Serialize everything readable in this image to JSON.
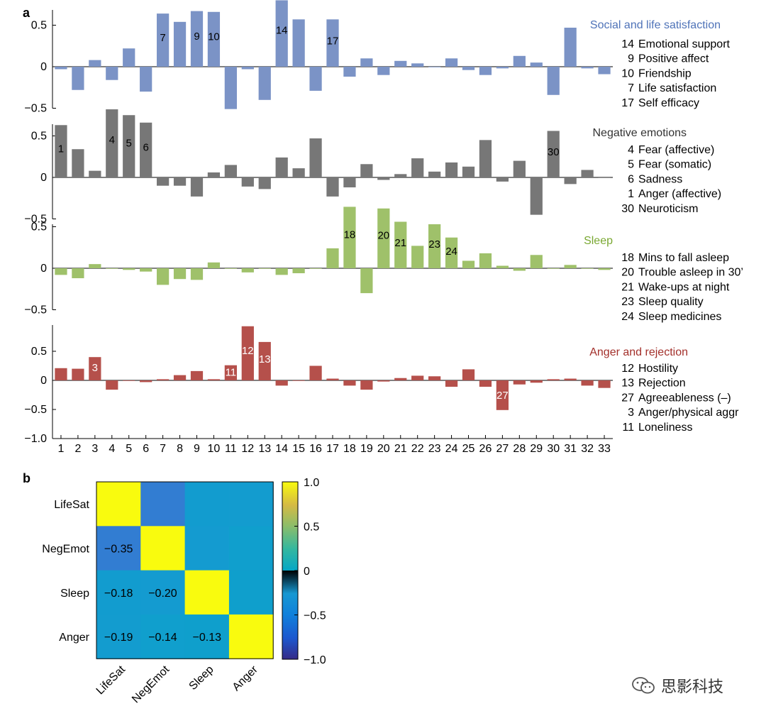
{
  "panel_letters": {
    "a": "a",
    "b": "b"
  },
  "chart_data": [
    {
      "type": "bar",
      "panel": "a",
      "categories": [
        "1",
        "2",
        "3",
        "4",
        "5",
        "6",
        "7",
        "8",
        "9",
        "10",
        "11",
        "12",
        "13",
        "14",
        "15",
        "16",
        "17",
        "18",
        "19",
        "20",
        "21",
        "22",
        "23",
        "24",
        "25",
        "26",
        "27",
        "28",
        "29",
        "30",
        "31",
        "32",
        "33"
      ],
      "xlim": [
        0.5,
        33.5
      ],
      "subplots": [
        {
          "title": "Social and life satisfaction",
          "color": "#7b93c6",
          "title_color": "#4f73b8",
          "ylim": [
            -0.5,
            0.8
          ],
          "yticks": [
            -0.5,
            0,
            0.5
          ],
          "ytick_labels": [
            "−0.5",
            "0",
            "0.5"
          ],
          "values": [
            -0.03,
            -0.28,
            0.08,
            -0.16,
            0.22,
            -0.3,
            0.64,
            0.54,
            0.67,
            0.66,
            -0.51,
            -0.03,
            -0.4,
            0.8,
            0.57,
            -0.29,
            0.57,
            -0.12,
            0.1,
            -0.1,
            0.07,
            0.04,
            0.0,
            0.1,
            -0.04,
            -0.1,
            -0.02,
            0.13,
            0.05,
            -0.34,
            0.47,
            -0.02,
            -0.09
          ],
          "bar_labels": [
            {
              "index": 7,
              "text": "7"
            },
            {
              "index": 9,
              "text": "9"
            },
            {
              "index": 10,
              "text": "10"
            },
            {
              "index": 14,
              "text": "14"
            },
            {
              "index": 17,
              "text": "17"
            }
          ],
          "bar_label_color": "#000000",
          "legend": [
            "14 Emotional support",
            "9 Positive affect",
            "10 Friendship",
            "7 Life satisfaction",
            "17 Self efficacy"
          ]
        },
        {
          "title": "Negative emotions",
          "color": "#777777",
          "title_color": "#333333",
          "ylim": [
            -0.5,
            0.8
          ],
          "yticks": [
            -0.5,
            0,
            0.5
          ],
          "ytick_labels": [
            "−0.5",
            "0",
            "0.5"
          ],
          "values": [
            0.63,
            0.34,
            0.08,
            0.82,
            0.75,
            0.66,
            -0.1,
            -0.1,
            -0.23,
            0.06,
            0.15,
            -0.11,
            -0.14,
            0.24,
            0.11,
            0.47,
            -0.23,
            -0.12,
            0.16,
            -0.03,
            0.04,
            0.23,
            0.07,
            0.18,
            0.13,
            0.45,
            -0.05,
            0.2,
            -0.45,
            0.56,
            -0.08,
            0.09,
            0.0
          ],
          "bar_labels": [
            {
              "index": 1,
              "text": "1"
            },
            {
              "index": 4,
              "text": "4"
            },
            {
              "index": 5,
              "text": "5"
            },
            {
              "index": 6,
              "text": "6"
            },
            {
              "index": 30,
              "text": "30"
            }
          ],
          "bar_label_color": "#000000",
          "legend": [
            "4 Fear (affective)",
            "5 Fear (somatic)",
            "6 Sadness",
            "1 Anger (affective)",
            "30 Neuroticism"
          ]
        },
        {
          "title": "Sleep",
          "color": "#9fc16a",
          "title_color": "#7aa832",
          "ylim": [
            -0.5,
            0.8
          ],
          "yticks": [
            -0.5,
            0,
            0.5
          ],
          "ytick_labels": [
            "−0.5",
            "0",
            "0.5"
          ],
          "values": [
            -0.08,
            -0.12,
            0.05,
            0.0,
            -0.02,
            -0.04,
            -0.2,
            -0.13,
            -0.14,
            0.07,
            0.0,
            -0.05,
            0.0,
            -0.08,
            -0.06,
            0.0,
            0.24,
            0.74,
            -0.3,
            0.72,
            0.56,
            0.27,
            0.53,
            0.37,
            0.09,
            0.18,
            0.03,
            -0.03,
            0.16,
            0.0,
            0.04,
            0.0,
            -0.02
          ],
          "bar_labels": [
            {
              "index": 18,
              "text": "18"
            },
            {
              "index": 20,
              "text": "20"
            },
            {
              "index": 21,
              "text": "21"
            },
            {
              "index": 23,
              "text": "23"
            },
            {
              "index": 24,
              "text": "24"
            }
          ],
          "bar_label_color": "#000000",
          "legend": [
            "18 Mins to fall asleep",
            "20 Trouble asleep in 30’",
            "21 Wake-ups at night",
            "23 Sleep quality",
            "24 Sleep medicines"
          ]
        },
        {
          "title": "Anger and rejection",
          "color": "#b5504b",
          "title_color": "#a3302b",
          "ylim": [
            -1.0,
            0.9
          ],
          "yticks": [
            -1.0,
            -0.5,
            0,
            0.5
          ],
          "ytick_labels": [
            "−1.0",
            "−0.5",
            "0",
            "0.5"
          ],
          "values": [
            0.21,
            0.2,
            0.4,
            -0.16,
            0.0,
            -0.03,
            0.02,
            0.09,
            0.16,
            0.02,
            0.26,
            0.93,
            0.66,
            -0.09,
            0.0,
            0.25,
            0.03,
            -0.09,
            -0.16,
            -0.02,
            0.04,
            0.08,
            0.07,
            -0.11,
            0.19,
            -0.11,
            -0.51,
            -0.07,
            -0.04,
            0.02,
            0.03,
            -0.09,
            -0.13
          ],
          "bar_labels": [
            {
              "index": 3,
              "text": "3"
            },
            {
              "index": 11,
              "text": "11"
            },
            {
              "index": 12,
              "text": "12"
            },
            {
              "index": 13,
              "text": "13"
            },
            {
              "index": 27,
              "text": "27"
            }
          ],
          "bar_label_color": "#ffffff",
          "legend": [
            "12 Hostility",
            "13 Rejection",
            "27 Agreeableness (–)",
            "3 Anger/physical aggr",
            "11 Loneliness"
          ]
        }
      ]
    },
    {
      "type": "heatmap",
      "panel": "b",
      "row_labels": [
        "LifeSat",
        "NegEmot",
        "Sleep",
        "Anger"
      ],
      "col_labels": [
        "LifeSat",
        "NegEmot",
        "Sleep",
        "Anger"
      ],
      "values": [
        [
          1.0,
          -0.35,
          -0.18,
          -0.19
        ],
        [
          -0.35,
          1.0,
          -0.2,
          -0.14
        ],
        [
          -0.18,
          -0.2,
          1.0,
          -0.13
        ],
        [
          -0.19,
          -0.14,
          -0.13,
          1.0
        ]
      ],
      "cell_text": [
        [
          "",
          "",
          "",
          ""
        ],
        [
          "−0.35",
          "",
          "",
          ""
        ],
        [
          "−0.18",
          "−0.20",
          "",
          ""
        ],
        [
          "−0.19",
          "−0.14",
          "−0.13",
          ""
        ]
      ],
      "colorbar": {
        "range": [
          -1.0,
          1.0
        ],
        "ticks": [
          1.0,
          0.5,
          0,
          -0.5,
          -1.0
        ],
        "tick_labels": [
          "1.0",
          "0.5",
          "0",
          "−0.5",
          "−1.0"
        ],
        "colormap": "parula"
      }
    }
  ],
  "watermark": {
    "text": "思影科技",
    "icon": "wechat-icon"
  }
}
